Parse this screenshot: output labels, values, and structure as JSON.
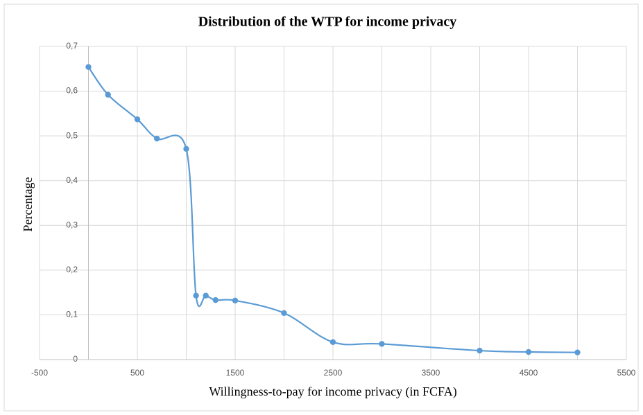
{
  "chart_data": {
    "type": "line",
    "title": "Distribution of  the WTP for income privacy",
    "x_label": "Willingness-to-pay  for income  privacy (in FCFA)",
    "y_label": "Percentage",
    "x": [
      0,
      200,
      500,
      700,
      1000,
      1100,
      1200,
      1300,
      1500,
      2000,
      2500,
      3000,
      4000,
      4500,
      5000
    ],
    "series": [
      {
        "color": "#5b9bd5",
        "values": [
          0.654,
          0.592,
          0.537,
          0.494,
          0.471,
          0.143,
          0.143,
          0.133,
          0.132,
          0.104,
          0.039,
          0.035,
          0.02,
          0.017,
          0.016
        ]
      }
    ],
    "smooth": true,
    "grid": true,
    "xlim": [
      -500,
      5500
    ],
    "xticks": [
      -500,
      500,
      1500,
      2500,
      3500,
      4500,
      5500
    ],
    "ylim": [
      0,
      0.7
    ],
    "yticks": [
      0,
      {
        "value": 0.1,
        "label": "0,1"
      },
      {
        "value": 0.2,
        "label": "0,2"
      },
      {
        "value": 0.3,
        "label": "0,3"
      },
      {
        "value": 0.4,
        "label": "0,4"
      },
      {
        "value": 0.5,
        "label": "0,5"
      },
      {
        "value": 0.6,
        "label": "0,6"
      },
      {
        "value": 0.7,
        "label": "0,7"
      }
    ]
  }
}
